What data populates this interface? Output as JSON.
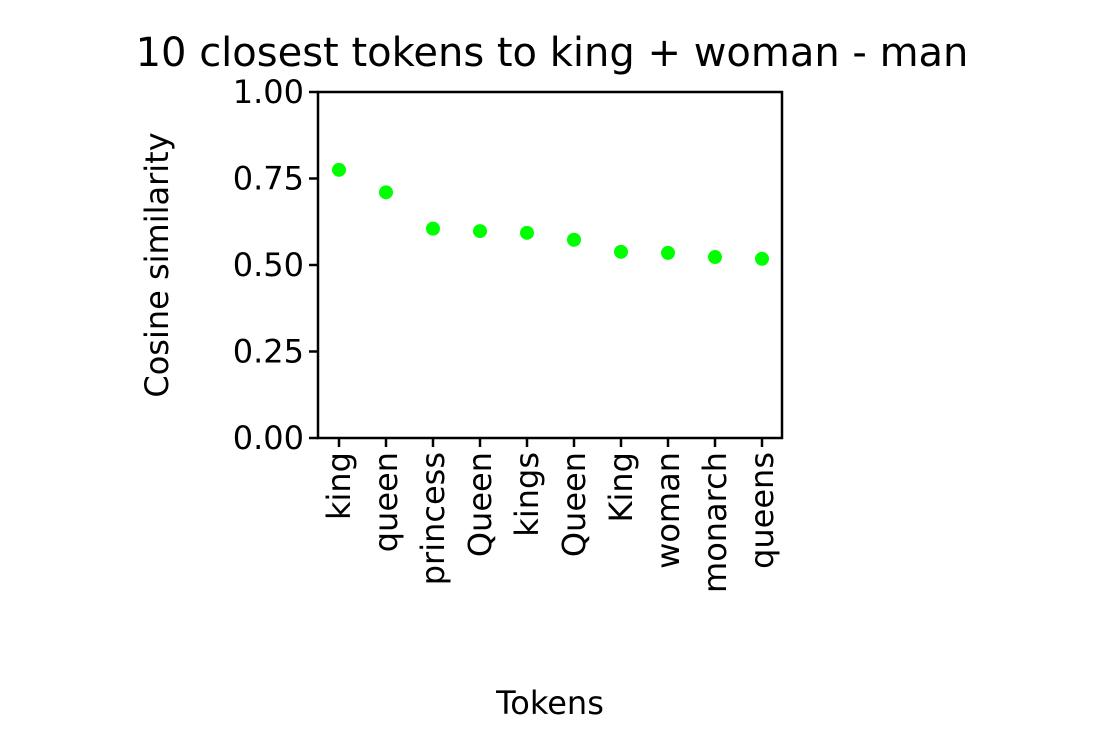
{
  "chart_data": {
    "type": "scatter",
    "title": "10 closest tokens to king + woman - man",
    "xlabel": "Tokens",
    "ylabel": "Cosine similarity",
    "ylim": [
      0,
      1
    ],
    "yticks": [
      "0.00",
      "0.25",
      "0.50",
      "0.75",
      "1.00"
    ],
    "ytick_values": [
      0,
      0.25,
      0.5,
      0.75,
      1.0
    ],
    "categories": [
      "king",
      "queen",
      "princess",
      "Queen",
      "kings",
      "Queen",
      "King",
      "woman",
      "monarch",
      "queens"
    ],
    "values": [
      0.775,
      0.71,
      0.605,
      0.598,
      0.593,
      0.573,
      0.538,
      0.535,
      0.523,
      0.518
    ],
    "color": "#00ff00",
    "grid": false,
    "legend": false
  }
}
